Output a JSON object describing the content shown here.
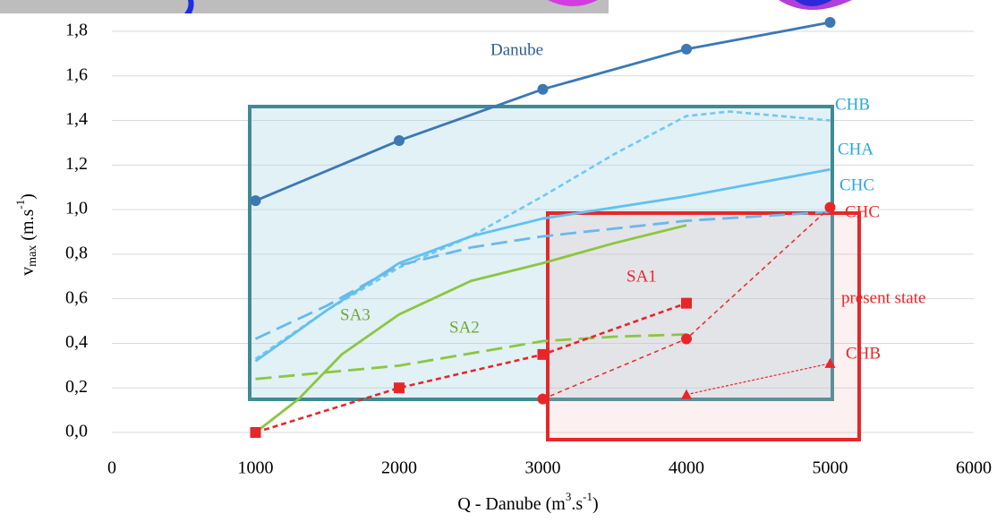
{
  "chart_data": {
    "type": "line",
    "y_label": [
      "v",
      "max",
      "(m.s",
      "-1",
      ")"
    ],
    "x_label": [
      "Q - Danube (m",
      "3",
      ".s",
      "-1",
      ")"
    ],
    "xlim": [
      0,
      6000
    ],
    "ylim": [
      0,
      1.8
    ],
    "xticks": [
      0,
      1000,
      2000,
      3000,
      4000,
      5000,
      6000
    ],
    "yticks": [
      {
        "value": 0,
        "label": "0,0"
      },
      {
        "value": 0.2,
        "label": "0,2"
      },
      {
        "value": 0.4,
        "label": "0,4"
      },
      {
        "value": 0.6,
        "label": "0,6"
      },
      {
        "value": 0.8,
        "label": "0,8"
      },
      {
        "value": 1.0,
        "label": "1,0"
      },
      {
        "value": 1.2,
        "label": "1,2"
      },
      {
        "value": 1.4,
        "label": "1,4"
      },
      {
        "value": 1.6,
        "label": "1,6"
      },
      {
        "value": 1.8,
        "label": "1,8"
      }
    ],
    "grid": true,
    "series": [
      {
        "name": "Danube",
        "color": "#3b78b4",
        "dash": "solid",
        "marker": "circle",
        "x": [
          1000,
          2000,
          3000,
          4000,
          5000
        ],
        "values": [
          1.04,
          1.31,
          1.54,
          1.72,
          1.84
        ]
      },
      {
        "name": "CHB",
        "color": "#70c8f0",
        "dash": "dashed",
        "marker": null,
        "x": [
          1000,
          1500,
          2000,
          2500,
          3000,
          3500,
          4000,
          4300,
          5000
        ],
        "values": [
          0.33,
          0.55,
          0.74,
          0.88,
          1.06,
          1.25,
          1.42,
          1.44,
          1.4
        ]
      },
      {
        "name": "CHA",
        "color": "#62c0f0",
        "dash": "solid",
        "marker": null,
        "x": [
          1000,
          1500,
          2000,
          2500,
          3000,
          4000,
          5000
        ],
        "values": [
          0.32,
          0.55,
          0.76,
          0.88,
          0.96,
          1.06,
          1.18
        ]
      },
      {
        "name": "CHC",
        "color": "#6ab8ea",
        "dash": "long-dashed",
        "marker": null,
        "x": [
          1000,
          1500,
          2000,
          2500,
          3000,
          4000,
          5000
        ],
        "values": [
          0.42,
          0.57,
          0.75,
          0.83,
          0.88,
          0.95,
          0.99
        ]
      },
      {
        "name": "SA3",
        "color": "#8cc63f",
        "dash": "solid",
        "marker": null,
        "x": [
          1000,
          1300,
          1600,
          2000,
          2500,
          3000,
          3500,
          4000
        ],
        "values": [
          0.0,
          0.15,
          0.35,
          0.53,
          0.68,
          0.76,
          0.85,
          0.93
        ]
      },
      {
        "name": "SA2",
        "color": "#8cc63f",
        "dash": "long-dashed",
        "marker": null,
        "x": [
          1000,
          2000,
          3000,
          3500,
          4000
        ],
        "values": [
          0.24,
          0.3,
          0.41,
          0.43,
          0.44
        ]
      },
      {
        "name": "SA1",
        "color": "#e8262a",
        "dash": "dashed",
        "marker": "square",
        "x": [
          1000,
          2000,
          3000,
          4000
        ],
        "values": [
          0.0,
          0.2,
          0.35,
          0.58
        ]
      },
      {
        "name": "present state",
        "color": "#e8262a",
        "dash": "thin-dashed",
        "marker": "circle",
        "x": [
          3000,
          4000,
          5000
        ],
        "values": [
          0.15,
          0.42,
          1.01
        ]
      },
      {
        "name": "CHB",
        "color": "#e8262a",
        "dash": "dotted",
        "marker": "triangle",
        "x": [
          4000,
          5000
        ],
        "values": [
          0.17,
          0.31
        ]
      }
    ],
    "annotations": [
      "CHC"
    ]
  }
}
